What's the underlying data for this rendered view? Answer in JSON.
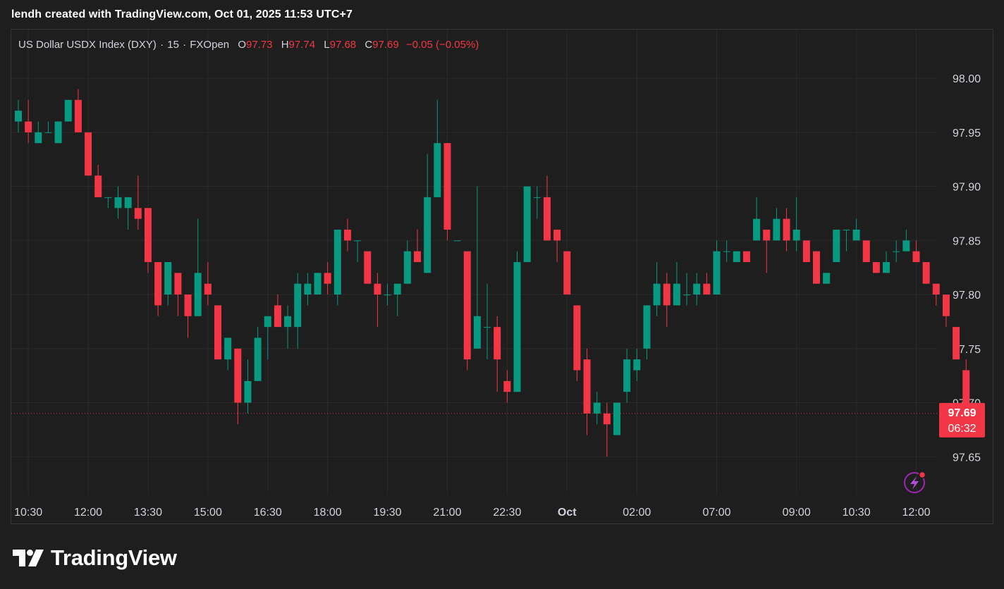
{
  "header": {
    "title": "lendh created with TradingView.com, Oct 01, 2025 11:53 UTC+7"
  },
  "legend": {
    "symbol": "US Dollar USDX Index (DXY)",
    "interval": "15",
    "source": "FXOpen",
    "o_label": "O",
    "o": "97.73",
    "h_label": "H",
    "h": "97.74",
    "l_label": "L",
    "l": "97.68",
    "c_label": "C",
    "c": "97.69",
    "change": "−0.05 (−0.05%)"
  },
  "price_badge": {
    "price": "97.69",
    "countdown": "06:32"
  },
  "brand": {
    "name": "TradingView"
  },
  "colors": {
    "up": "#089981",
    "down": "#f23645",
    "grid": "#2a2a2a",
    "background": "#1e1e1e",
    "text": "#d1d4dc"
  },
  "chart_data": {
    "type": "candlestick",
    "y_ticks": [
      "98.00",
      "97.95",
      "97.90",
      "97.85",
      "97.80",
      "97.75",
      "97.70",
      "97.65"
    ],
    "ylim": [
      97.615,
      98.045
    ],
    "last_price": 97.69,
    "x_ticks": [
      {
        "label": "10:30",
        "index": 1
      },
      {
        "label": "12:00",
        "index": 7
      },
      {
        "label": "13:30",
        "index": 13
      },
      {
        "label": "15:00",
        "index": 19
      },
      {
        "label": "16:30",
        "index": 25
      },
      {
        "label": "18:00",
        "index": 31
      },
      {
        "label": "19:30",
        "index": 37
      },
      {
        "label": "21:00",
        "index": 43
      },
      {
        "label": "22:30",
        "index": 49
      },
      {
        "label": "Oct",
        "index": 55,
        "bold": true
      },
      {
        "label": "02:00",
        "index": 62
      },
      {
        "label": "07:00",
        "index": 70
      },
      {
        "label": "09:00",
        "index": 78
      },
      {
        "label": "10:30",
        "index": 84
      },
      {
        "label": "12:00",
        "index": 90
      }
    ],
    "candles": [
      {
        "o": 97.96,
        "h": 97.98,
        "l": 97.95,
        "c": 97.97
      },
      {
        "o": 97.96,
        "h": 97.98,
        "l": 97.94,
        "c": 97.95
      },
      {
        "o": 97.94,
        "h": 97.96,
        "l": 97.94,
        "c": 97.95
      },
      {
        "o": 97.95,
        "h": 97.96,
        "l": 97.95,
        "c": 97.95
      },
      {
        "o": 97.94,
        "h": 97.96,
        "l": 97.94,
        "c": 97.96
      },
      {
        "o": 97.96,
        "h": 97.98,
        "l": 97.96,
        "c": 97.98
      },
      {
        "o": 97.98,
        "h": 97.99,
        "l": 97.95,
        "c": 97.95
      },
      {
        "o": 97.95,
        "h": 97.95,
        "l": 97.91,
        "c": 97.91
      },
      {
        "o": 97.91,
        "h": 97.92,
        "l": 97.89,
        "c": 97.89
      },
      {
        "o": 97.89,
        "h": 97.89,
        "l": 97.88,
        "c": 97.89
      },
      {
        "o": 97.88,
        "h": 97.9,
        "l": 97.87,
        "c": 97.89
      },
      {
        "o": 97.88,
        "h": 97.89,
        "l": 97.86,
        "c": 97.89
      },
      {
        "o": 97.88,
        "h": 97.91,
        "l": 97.86,
        "c": 97.87
      },
      {
        "o": 97.88,
        "h": 97.88,
        "l": 97.82,
        "c": 97.83
      },
      {
        "o": 97.83,
        "h": 97.83,
        "l": 97.78,
        "c": 97.79
      },
      {
        "o": 97.8,
        "h": 97.83,
        "l": 97.79,
        "c": 97.83
      },
      {
        "o": 97.82,
        "h": 97.82,
        "l": 97.78,
        "c": 97.8
      },
      {
        "o": 97.8,
        "h": 97.8,
        "l": 97.76,
        "c": 97.78
      },
      {
        "o": 97.78,
        "h": 97.87,
        "l": 97.78,
        "c": 97.82
      },
      {
        "o": 97.81,
        "h": 97.83,
        "l": 97.79,
        "c": 97.8
      },
      {
        "o": 97.79,
        "h": 97.79,
        "l": 97.74,
        "c": 97.74
      },
      {
        "o": 97.74,
        "h": 97.76,
        "l": 97.73,
        "c": 97.76
      },
      {
        "o": 97.75,
        "h": 97.75,
        "l": 97.68,
        "c": 97.7
      },
      {
        "o": 97.7,
        "h": 97.74,
        "l": 97.69,
        "c": 97.72
      },
      {
        "o": 97.72,
        "h": 97.77,
        "l": 97.72,
        "c": 97.76
      },
      {
        "o": 97.77,
        "h": 97.78,
        "l": 97.74,
        "c": 97.78
      },
      {
        "o": 97.79,
        "h": 97.8,
        "l": 97.77,
        "c": 97.77
      },
      {
        "o": 97.77,
        "h": 97.79,
        "l": 97.75,
        "c": 97.78
      },
      {
        "o": 97.77,
        "h": 97.82,
        "l": 97.75,
        "c": 97.81
      },
      {
        "o": 97.8,
        "h": 97.82,
        "l": 97.79,
        "c": 97.81
      },
      {
        "o": 97.8,
        "h": 97.82,
        "l": 97.8,
        "c": 97.82
      },
      {
        "o": 97.82,
        "h": 97.83,
        "l": 97.8,
        "c": 97.81
      },
      {
        "o": 97.8,
        "h": 97.86,
        "l": 97.79,
        "c": 97.86
      },
      {
        "o": 97.86,
        "h": 97.87,
        "l": 97.84,
        "c": 97.85
      },
      {
        "o": 97.85,
        "h": 97.85,
        "l": 97.83,
        "c": 97.85
      },
      {
        "o": 97.84,
        "h": 97.84,
        "l": 97.81,
        "c": 97.81
      },
      {
        "o": 97.81,
        "h": 97.82,
        "l": 97.77,
        "c": 97.8
      },
      {
        "o": 97.8,
        "h": 97.81,
        "l": 97.79,
        "c": 97.8
      },
      {
        "o": 97.8,
        "h": 97.81,
        "l": 97.78,
        "c": 97.81
      },
      {
        "o": 97.81,
        "h": 97.85,
        "l": 97.81,
        "c": 97.84
      },
      {
        "o": 97.84,
        "h": 97.86,
        "l": 97.83,
        "c": 97.83
      },
      {
        "o": 97.82,
        "h": 97.93,
        "l": 97.82,
        "c": 97.89
      },
      {
        "o": 97.89,
        "h": 97.98,
        "l": 97.89,
        "c": 97.94
      },
      {
        "o": 97.94,
        "h": 97.94,
        "l": 97.85,
        "c": 97.86
      },
      {
        "o": 97.85,
        "h": 97.85,
        "l": 97.85,
        "c": 97.85
      },
      {
        "o": 97.84,
        "h": 97.84,
        "l": 97.73,
        "c": 97.74
      },
      {
        "o": 97.75,
        "h": 97.9,
        "l": 97.75,
        "c": 97.78
      },
      {
        "o": 97.77,
        "h": 97.81,
        "l": 97.74,
        "c": 97.77
      },
      {
        "o": 97.77,
        "h": 97.78,
        "l": 97.71,
        "c": 97.74
      },
      {
        "o": 97.72,
        "h": 97.73,
        "l": 97.7,
        "c": 97.71
      },
      {
        "o": 97.71,
        "h": 97.84,
        "l": 97.71,
        "c": 97.83
      },
      {
        "o": 97.83,
        "h": 97.9,
        "l": 97.83,
        "c": 97.9
      },
      {
        "o": 97.89,
        "h": 97.9,
        "l": 97.87,
        "c": 97.89
      },
      {
        "o": 97.89,
        "h": 97.91,
        "l": 97.85,
        "c": 97.85
      },
      {
        "o": 97.86,
        "h": 97.86,
        "l": 97.83,
        "c": 97.85
      },
      {
        "o": 97.84,
        "h": 97.84,
        "l": 97.8,
        "c": 97.8
      },
      {
        "o": 97.79,
        "h": 97.79,
        "l": 97.72,
        "c": 97.73
      },
      {
        "o": 97.74,
        "h": 97.75,
        "l": 97.67,
        "c": 97.69
      },
      {
        "o": 97.69,
        "h": 97.71,
        "l": 97.68,
        "c": 97.7
      },
      {
        "o": 97.69,
        "h": 97.7,
        "l": 97.65,
        "c": 97.68
      },
      {
        "o": 97.67,
        "h": 97.7,
        "l": 97.67,
        "c": 97.7
      },
      {
        "o": 97.71,
        "h": 97.75,
        "l": 97.7,
        "c": 97.74
      },
      {
        "o": 97.73,
        "h": 97.75,
        "l": 97.72,
        "c": 97.74
      },
      {
        "o": 97.75,
        "h": 97.79,
        "l": 97.74,
        "c": 97.79
      },
      {
        "o": 97.79,
        "h": 97.83,
        "l": 97.78,
        "c": 97.81
      },
      {
        "o": 97.81,
        "h": 97.82,
        "l": 97.77,
        "c": 97.79
      },
      {
        "o": 97.79,
        "h": 97.83,
        "l": 97.79,
        "c": 97.81
      },
      {
        "o": 97.8,
        "h": 97.82,
        "l": 97.79,
        "c": 97.8
      },
      {
        "o": 97.8,
        "h": 97.82,
        "l": 97.79,
        "c": 97.81
      },
      {
        "o": 97.81,
        "h": 97.82,
        "l": 97.8,
        "c": 97.8
      },
      {
        "o": 97.8,
        "h": 97.85,
        "l": 97.8,
        "c": 97.84
      },
      {
        "o": 97.84,
        "h": 97.85,
        "l": 97.83,
        "c": 97.84
      },
      {
        "o": 97.83,
        "h": 97.84,
        "l": 97.83,
        "c": 97.84
      },
      {
        "o": 97.84,
        "h": 97.84,
        "l": 97.83,
        "c": 97.83
      },
      {
        "o": 97.85,
        "h": 97.89,
        "l": 97.85,
        "c": 97.87
      },
      {
        "o": 97.86,
        "h": 97.86,
        "l": 97.82,
        "c": 97.85
      },
      {
        "o": 97.85,
        "h": 97.88,
        "l": 97.85,
        "c": 97.87
      },
      {
        "o": 97.87,
        "h": 97.88,
        "l": 97.84,
        "c": 97.85
      },
      {
        "o": 97.85,
        "h": 97.89,
        "l": 97.84,
        "c": 97.86
      },
      {
        "o": 97.85,
        "h": 97.85,
        "l": 97.83,
        "c": 97.83
      },
      {
        "o": 97.84,
        "h": 97.84,
        "l": 97.81,
        "c": 97.81
      },
      {
        "o": 97.81,
        "h": 97.82,
        "l": 97.81,
        "c": 97.82
      },
      {
        "o": 97.83,
        "h": 97.86,
        "l": 97.83,
        "c": 97.86
      },
      {
        "o": 97.86,
        "h": 97.86,
        "l": 97.84,
        "c": 97.86
      },
      {
        "o": 97.85,
        "h": 97.87,
        "l": 97.85,
        "c": 97.86
      },
      {
        "o": 97.85,
        "h": 97.85,
        "l": 97.83,
        "c": 97.83
      },
      {
        "o": 97.83,
        "h": 97.83,
        "l": 97.82,
        "c": 97.82
      },
      {
        "o": 97.82,
        "h": 97.84,
        "l": 97.82,
        "c": 97.83
      },
      {
        "o": 97.84,
        "h": 97.85,
        "l": 97.83,
        "c": 97.84
      },
      {
        "o": 97.84,
        "h": 97.86,
        "l": 97.84,
        "c": 97.85
      },
      {
        "o": 97.84,
        "h": 97.85,
        "l": 97.83,
        "c": 97.83
      },
      {
        "o": 97.83,
        "h": 97.83,
        "l": 97.81,
        "c": 97.81
      },
      {
        "o": 97.81,
        "h": 97.81,
        "l": 97.79,
        "c": 97.8
      },
      {
        "o": 97.8,
        "h": 97.8,
        "l": 97.77,
        "c": 97.78
      },
      {
        "o": 97.77,
        "h": 97.77,
        "l": 97.74,
        "c": 97.74
      },
      {
        "o": 97.73,
        "h": 97.74,
        "l": 97.68,
        "c": 97.69
      }
    ]
  }
}
